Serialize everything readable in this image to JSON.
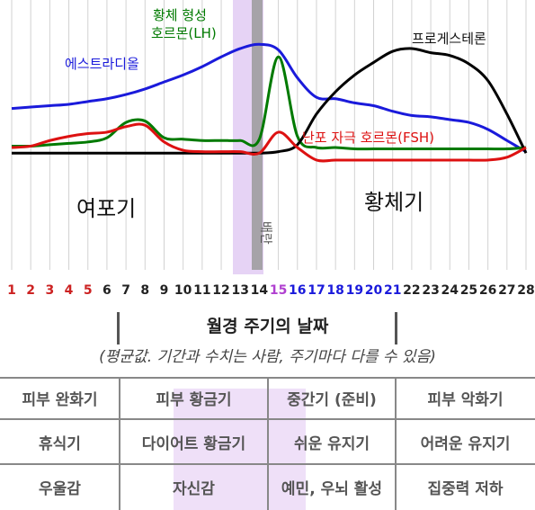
{
  "chart_data": {
    "type": "line",
    "x": [
      1,
      2,
      3,
      4,
      5,
      6,
      7,
      8,
      9,
      10,
      11,
      12,
      13,
      14,
      15,
      16,
      17,
      18,
      19,
      20,
      21,
      22,
      23,
      24,
      25,
      26,
      27,
      28
    ],
    "xlim": [
      1,
      28
    ],
    "ylim": [
      0,
      100
    ],
    "series": [
      {
        "name": "에스트라디올",
        "color": "#1a1adb",
        "values": [
          48,
          49,
          50,
          51,
          53,
          55,
          58,
          62,
          67,
          72,
          78,
          85,
          91,
          94,
          90,
          70,
          56,
          55,
          52,
          50,
          46,
          43,
          42,
          40,
          38,
          33,
          25,
          17
        ]
      },
      {
        "name": "황체 형성 호르몬(LH)",
        "color": "#007a00",
        "values": [
          21,
          21,
          22,
          23,
          24,
          27,
          38,
          39,
          27,
          26,
          25,
          25,
          25,
          26,
          85,
          28,
          20,
          20,
          19,
          19,
          19,
          19,
          19,
          19,
          19,
          19,
          19,
          20
        ]
      },
      {
        "name": "프로게스테론",
        "color": "#000000",
        "values": [
          16,
          16,
          16,
          16,
          16,
          16,
          16,
          16,
          16,
          16,
          16,
          16,
          16,
          16,
          17,
          22,
          44,
          60,
          72,
          81,
          89,
          91,
          88,
          86,
          80,
          68,
          44,
          16
        ]
      },
      {
        "name": "난포 자극 호르몬(FSH)",
        "color": "#dd1111",
        "values": [
          20,
          21,
          25,
          28,
          30,
          31,
          35,
          36,
          24,
          18,
          17,
          17,
          17,
          16,
          31,
          20,
          11,
          11,
          11,
          11,
          11,
          11,
          11,
          11,
          11,
          11,
          13,
          20
        ]
      }
    ],
    "phases": [
      {
        "label": "여포기",
        "from": 1,
        "to": 14
      },
      {
        "label": "배란",
        "day": 15
      },
      {
        "label": "황체기",
        "from": 16,
        "to": 28
      }
    ],
    "day_labels": [
      "1",
      "2",
      "3",
      "4",
      "5",
      "6",
      "7",
      "8",
      "9",
      "10",
      "11",
      "12",
      "13",
      "14",
      "15",
      "16",
      "17",
      "18",
      "19",
      "20",
      "21",
      "22",
      "23",
      "24",
      "25",
      "26",
      "27",
      "28"
    ],
    "day_label_colors": [
      "#cc2222",
      "#cc2222",
      "#cc2222",
      "#cc2222",
      "#cc2222",
      "#222222",
      "#222222",
      "#222222",
      "#222222",
      "#222222",
      "#222222",
      "#222222",
      "#222222",
      "#222222",
      "#b040d0",
      "#1a1adb",
      "#1a1adb",
      "#1a1adb",
      "#1a1adb",
      "#1a1adb",
      "#1a1adb",
      "#222222",
      "#222222",
      "#222222",
      "#222222",
      "#222222",
      "#222222",
      "#222222"
    ],
    "grid": true
  },
  "info": {
    "title": "월경 주기의 날짜",
    "subtitle": "(평균값. 기간과 수치는 사람, 주기마다 다를 수 있음)",
    "rows": [
      [
        "피부 완화기",
        "피부 황금기",
        "중간기 (준비)",
        "피부 악화기"
      ],
      [
        "휴식기",
        "다이어트 황금기",
        "쉬운 유지기",
        "어려운 유지기"
      ],
      [
        "우울감",
        "자신감",
        "예민, 우뇌 활성",
        "집중력 저하"
      ]
    ],
    "highlight_color": "#efe0f8"
  }
}
